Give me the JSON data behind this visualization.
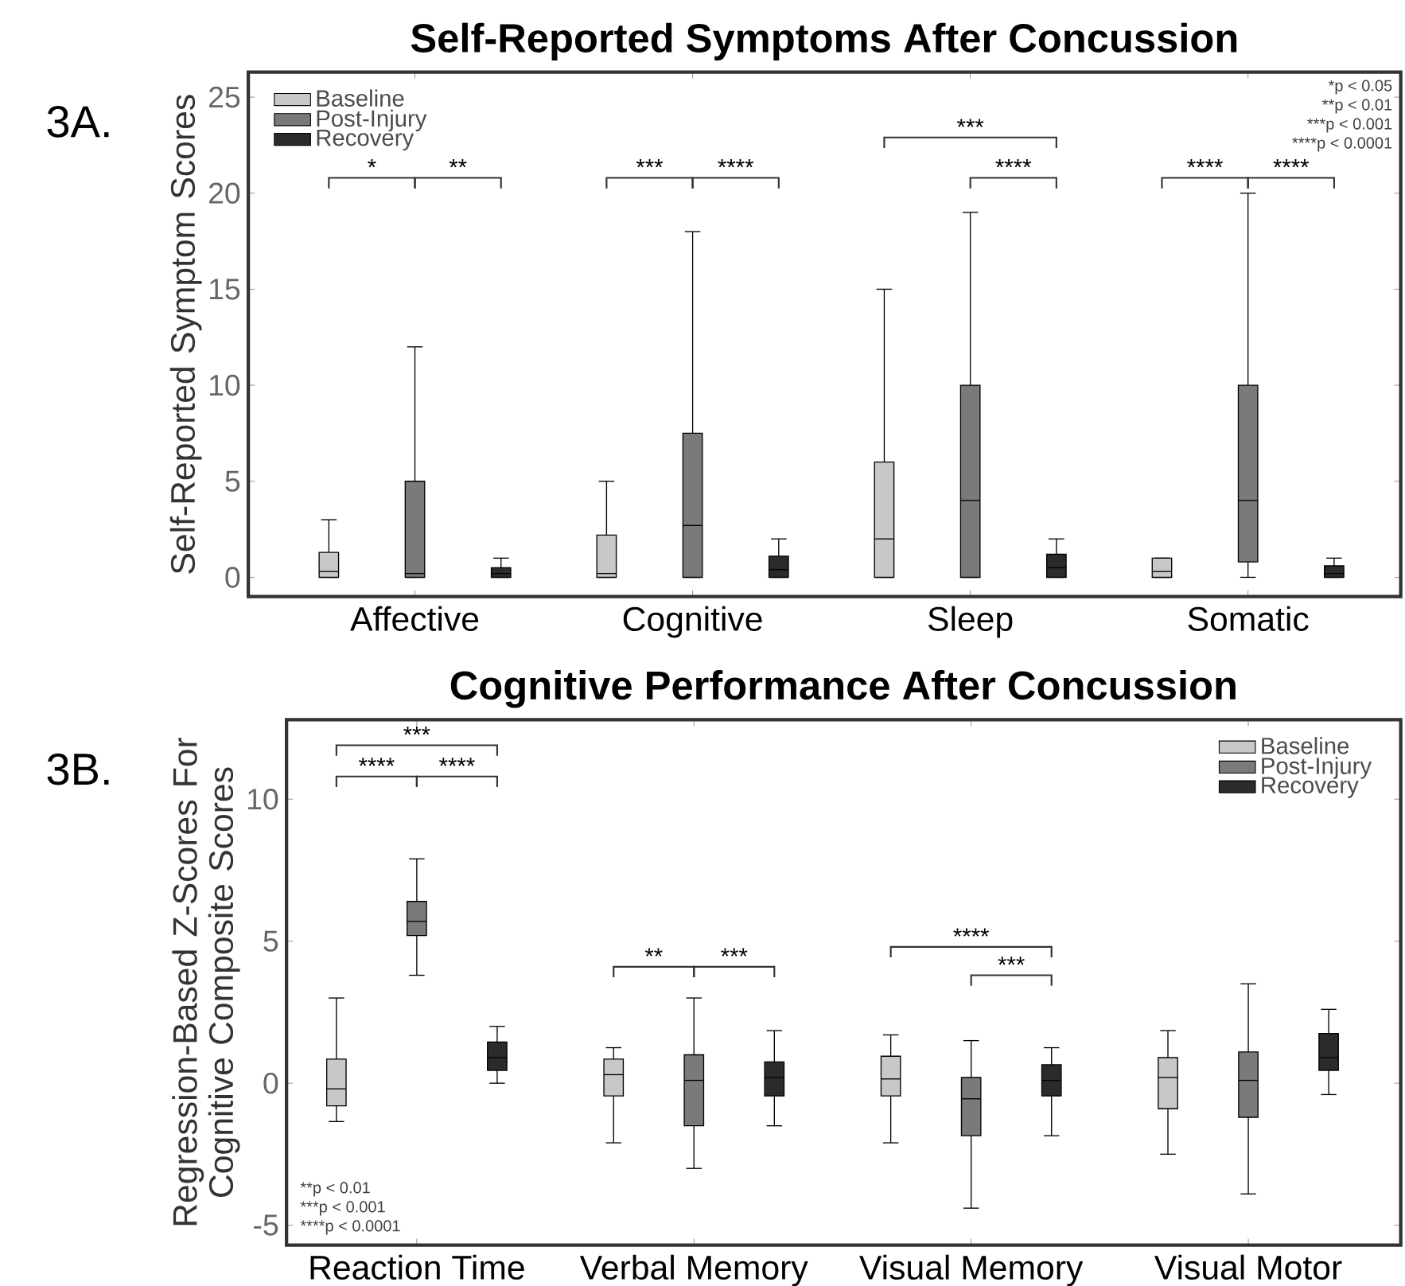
{
  "chart_data": [
    {
      "type": "box",
      "title": "Self-Reported Symptoms After Concussion",
      "ylabel": "Self-Reported Symptom Scores",
      "categories": [
        "Affective",
        "Cognitive",
        "Sleep",
        "Somatic"
      ],
      "series": [
        {
          "name": "Baseline",
          "color": "#c8c8c8",
          "boxes": [
            {
              "low": 0,
              "q1": 0,
              "median": 0.3,
              "q3": 1.3,
              "high": 3
            },
            {
              "low": 0,
              "q1": 0,
              "median": 0.2,
              "q3": 2.2,
              "high": 5
            },
            {
              "low": 0,
              "q1": 0,
              "median": 2,
              "q3": 6,
              "high": 15
            },
            {
              "low": 0,
              "q1": 0,
              "median": 0.3,
              "q3": 1,
              "high": 1
            }
          ]
        },
        {
          "name": "Post-Injury",
          "color": "#7a7a7a",
          "boxes": [
            {
              "low": 0,
              "q1": 0,
              "median": 0.2,
              "q3": 5,
              "high": 12
            },
            {
              "low": 0,
              "q1": 0,
              "median": 2.7,
              "q3": 7.5,
              "high": 18
            },
            {
              "low": 0,
              "q1": 0,
              "median": 4,
              "q3": 10,
              "high": 19
            },
            {
              "low": 0,
              "q1": 0.8,
              "median": 4,
              "q3": 10,
              "high": 20
            }
          ]
        },
        {
          "name": "Recovery",
          "color": "#2b2b2b",
          "boxes": [
            {
              "low": 0,
              "q1": 0,
              "median": 0.2,
              "q3": 0.5,
              "high": 1
            },
            {
              "low": 0,
              "q1": 0,
              "median": 0.4,
              "q3": 1.1,
              "high": 2
            },
            {
              "low": 0,
              "q1": 0,
              "median": 0.5,
              "q3": 1.2,
              "high": 2
            },
            {
              "low": 0,
              "q1": 0,
              "median": 0.2,
              "q3": 0.6,
              "high": 1
            }
          ]
        }
      ],
      "ylim": [
        -1,
        26.3
      ],
      "yticks": [
        0,
        5,
        10,
        15,
        20,
        25
      ],
      "legend": "top left",
      "annotations": [
        "3A.",
        "*",
        "**",
        "***",
        "****",
        "***",
        "****",
        "****",
        "****",
        "*p < 0.05",
        "**p < 0.01",
        "***p < 0.001",
        "****p < 0.0001"
      ]
    },
    {
      "type": "box",
      "title": "Cognitive Performance After Concussion",
      "ylabel": "Regression-Based Z-Scores For Cognitive Composite Scores",
      "categories": [
        "Reaction Time",
        "Verbal Memory",
        "Visual Memory",
        "Visual Motor"
      ],
      "series": [
        {
          "name": "Baseline",
          "color": "#c8c8c8",
          "boxes": [
            {
              "low": -1.35,
              "q1": -0.8,
              "median": -0.2,
              "q3": 0.85,
              "high": 3
            },
            {
              "low": -2.1,
              "q1": -0.45,
              "median": 0.3,
              "q3": 0.85,
              "high": 1.25
            },
            {
              "low": -2.1,
              "q1": -0.45,
              "median": 0.15,
              "q3": 0.95,
              "high": 1.7
            },
            {
              "low": -2.5,
              "q1": -0.9,
              "median": 0.2,
              "q3": 0.9,
              "high": 1.85
            }
          ]
        },
        {
          "name": "Post-Injury",
          "color": "#7a7a7a",
          "boxes": [
            {
              "low": 3.8,
              "q1": 5.2,
              "median": 5.7,
              "q3": 6.4,
              "high": 7.9
            },
            {
              "low": -3,
              "q1": -1.5,
              "median": 0.1,
              "q3": 1,
              "high": 3
            },
            {
              "low": -4.4,
              "q1": -1.85,
              "median": -0.55,
              "q3": 0.2,
              "high": 1.5
            },
            {
              "low": -3.9,
              "q1": -1.2,
              "median": 0.1,
              "q3": 1.1,
              "high": 3.5
            }
          ]
        },
        {
          "name": "Recovery",
          "color": "#2b2b2b",
          "boxes": [
            {
              "low": 0,
              "q1": 0.45,
              "median": 0.9,
              "q3": 1.45,
              "high": 2
            },
            {
              "low": -1.5,
              "q1": -0.45,
              "median": 0.2,
              "q3": 0.75,
              "high": 1.85
            },
            {
              "low": -1.85,
              "q1": -0.45,
              "median": 0.1,
              "q3": 0.65,
              "high": 1.25
            },
            {
              "low": -0.4,
              "q1": 0.45,
              "median": 0.9,
              "q3": 1.75,
              "high": 2.6
            }
          ]
        }
      ],
      "ylim": [
        -5.7,
        12.8
      ],
      "yticks": [
        -5,
        0,
        5,
        10
      ],
      "legend": "top right",
      "annotations": [
        "3B.",
        "***",
        "****",
        "****",
        "**",
        "***",
        "****",
        "***",
        "**p < 0.01",
        "***p < 0.001",
        "****p < 0.0001"
      ]
    }
  ]
}
